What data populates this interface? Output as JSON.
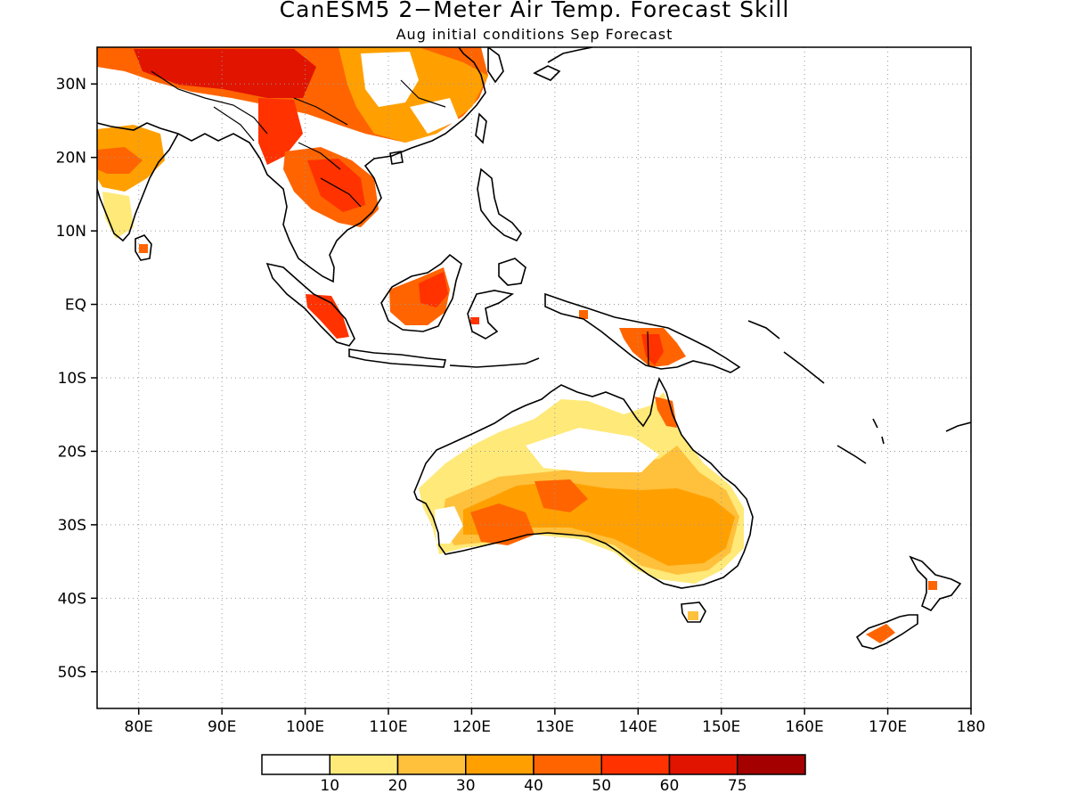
{
  "title": "CanESM5 2−Meter Air Temp. Forecast Skill",
  "subtitle": "Aug initial conditions  Sep Forecast",
  "map": {
    "lon_range": [
      75,
      180
    ],
    "lat_range": [
      -55,
      35
    ],
    "lon_ticks": [
      "80E",
      "90E",
      "100E",
      "110E",
      "120E",
      "130E",
      "140E",
      "150E",
      "160E",
      "170E",
      "180"
    ],
    "lat_ticks": [
      "30N",
      "20N",
      "10N",
      "EQ",
      "10S",
      "20S",
      "30S",
      "40S",
      "50S"
    ],
    "grid": "dotted"
  },
  "colorbar": {
    "labels": [
      "10",
      "20",
      "30",
      "40",
      "50",
      "60",
      "75"
    ],
    "colors": [
      "#ffffff",
      "#ffe978",
      "#ffc03c",
      "#ffa000",
      "#ff6400",
      "#ff3200",
      "#e11400",
      "#a50000"
    ]
  }
}
